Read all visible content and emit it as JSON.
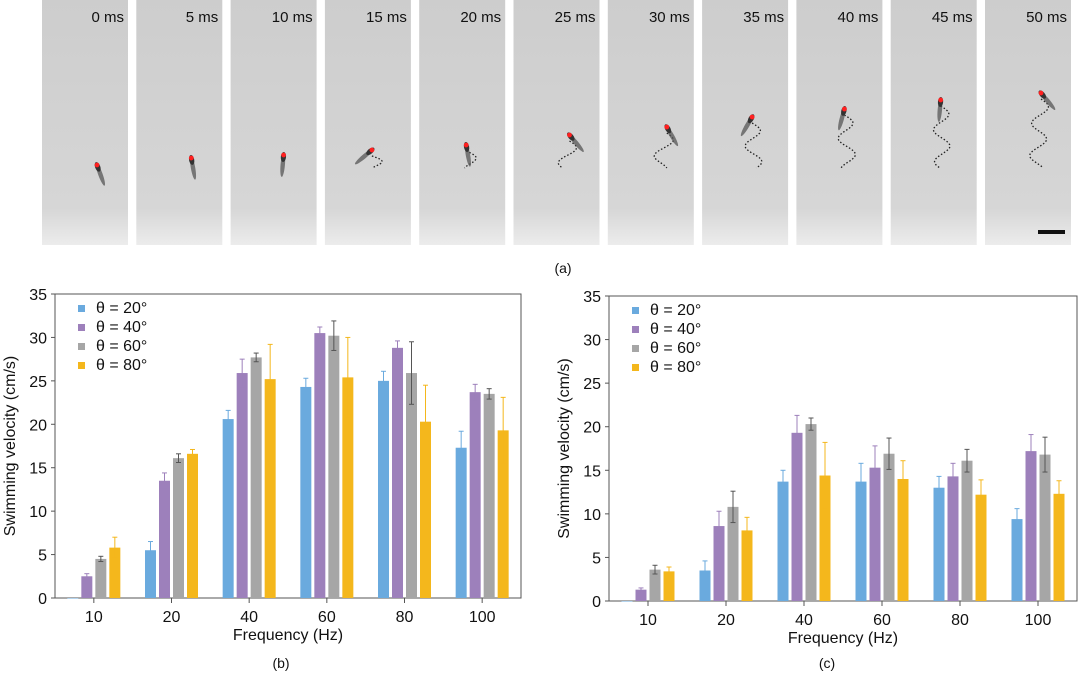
{
  "panel_a": {
    "caption": "(a)",
    "frames": [
      "0 ms",
      "5 ms",
      "10 ms",
      "15 ms",
      "20 ms",
      "25 ms",
      "30 ms",
      "35 ms",
      "40 ms",
      "45 ms",
      "50 ms"
    ],
    "marker_color": "#ff2020"
  },
  "chart_data": [
    {
      "id": "b",
      "caption": "(b)",
      "type": "bar",
      "xlabel": "Frequency (Hz)",
      "ylabel": "Swimming velocity (cm/s)",
      "ylim": [
        0,
        35
      ],
      "yticks": [
        "0",
        "5",
        "10",
        "15",
        "20",
        "25",
        "30",
        "35"
      ],
      "categories": [
        "10",
        "20",
        "40",
        "60",
        "80",
        "100"
      ],
      "legend_position": "top-left",
      "grid": false,
      "series": [
        {
          "name": "θ = 20°",
          "color": "#6aaade",
          "values": [
            0,
            5.5,
            20.6,
            24.3,
            25.0,
            17.3
          ],
          "errors": [
            0,
            1.0,
            1.0,
            1.0,
            1.1,
            1.9
          ]
        },
        {
          "name": "θ = 40°",
          "color": "#9d80bb",
          "values": [
            2.5,
            13.5,
            25.9,
            30.5,
            28.8,
            23.7
          ],
          "errors": [
            0.3,
            0.9,
            1.6,
            0.7,
            0.8,
            0.9
          ]
        },
        {
          "name": "θ = 60°",
          "color": "#a6a6a6",
          "values": [
            4.5,
            16.1,
            27.7,
            30.2,
            25.9,
            23.5
          ],
          "errors": [
            0.3,
            0.5,
            0.5,
            1.7,
            3.6,
            0.6
          ]
        },
        {
          "name": "θ = 80°",
          "color": "#f4b71c",
          "values": [
            5.8,
            16.6,
            25.2,
            25.4,
            20.3,
            19.3
          ],
          "errors": [
            1.2,
            0.5,
            4.0,
            4.6,
            4.2,
            3.8
          ]
        }
      ]
    },
    {
      "id": "c",
      "caption": "(c)",
      "type": "bar",
      "xlabel": "Frequency (Hz)",
      "ylabel": "Swimming velocity (cm/s)",
      "ylim": [
        0,
        35
      ],
      "yticks": [
        "0",
        "5",
        "10",
        "15",
        "20",
        "25",
        "30",
        "35"
      ],
      "categories": [
        "10",
        "20",
        "40",
        "60",
        "80",
        "100"
      ],
      "legend_position": "top-left",
      "grid": false,
      "series": [
        {
          "name": "θ = 20°",
          "color": "#6aaade",
          "values": [
            0,
            3.5,
            13.7,
            13.7,
            13.0,
            9.4
          ],
          "errors": [
            0,
            1.1,
            1.3,
            2.1,
            1.3,
            1.2
          ]
        },
        {
          "name": "θ = 40°",
          "color": "#9d80bb",
          "values": [
            1.3,
            8.6,
            19.3,
            15.3,
            14.3,
            17.2
          ],
          "errors": [
            0.2,
            1.7,
            2.0,
            2.5,
            1.5,
            1.9
          ]
        },
        {
          "name": "θ = 60°",
          "color": "#a6a6a6",
          "values": [
            3.6,
            10.8,
            20.3,
            16.9,
            16.1,
            16.8
          ],
          "errors": [
            0.5,
            1.8,
            0.7,
            1.8,
            1.3,
            2.0
          ]
        },
        {
          "name": "θ = 80°",
          "color": "#f4b71c",
          "values": [
            3.4,
            8.1,
            14.4,
            14.0,
            12.2,
            12.3
          ],
          "errors": [
            0.5,
            1.5,
            3.8,
            2.1,
            1.7,
            1.5
          ]
        }
      ]
    }
  ]
}
